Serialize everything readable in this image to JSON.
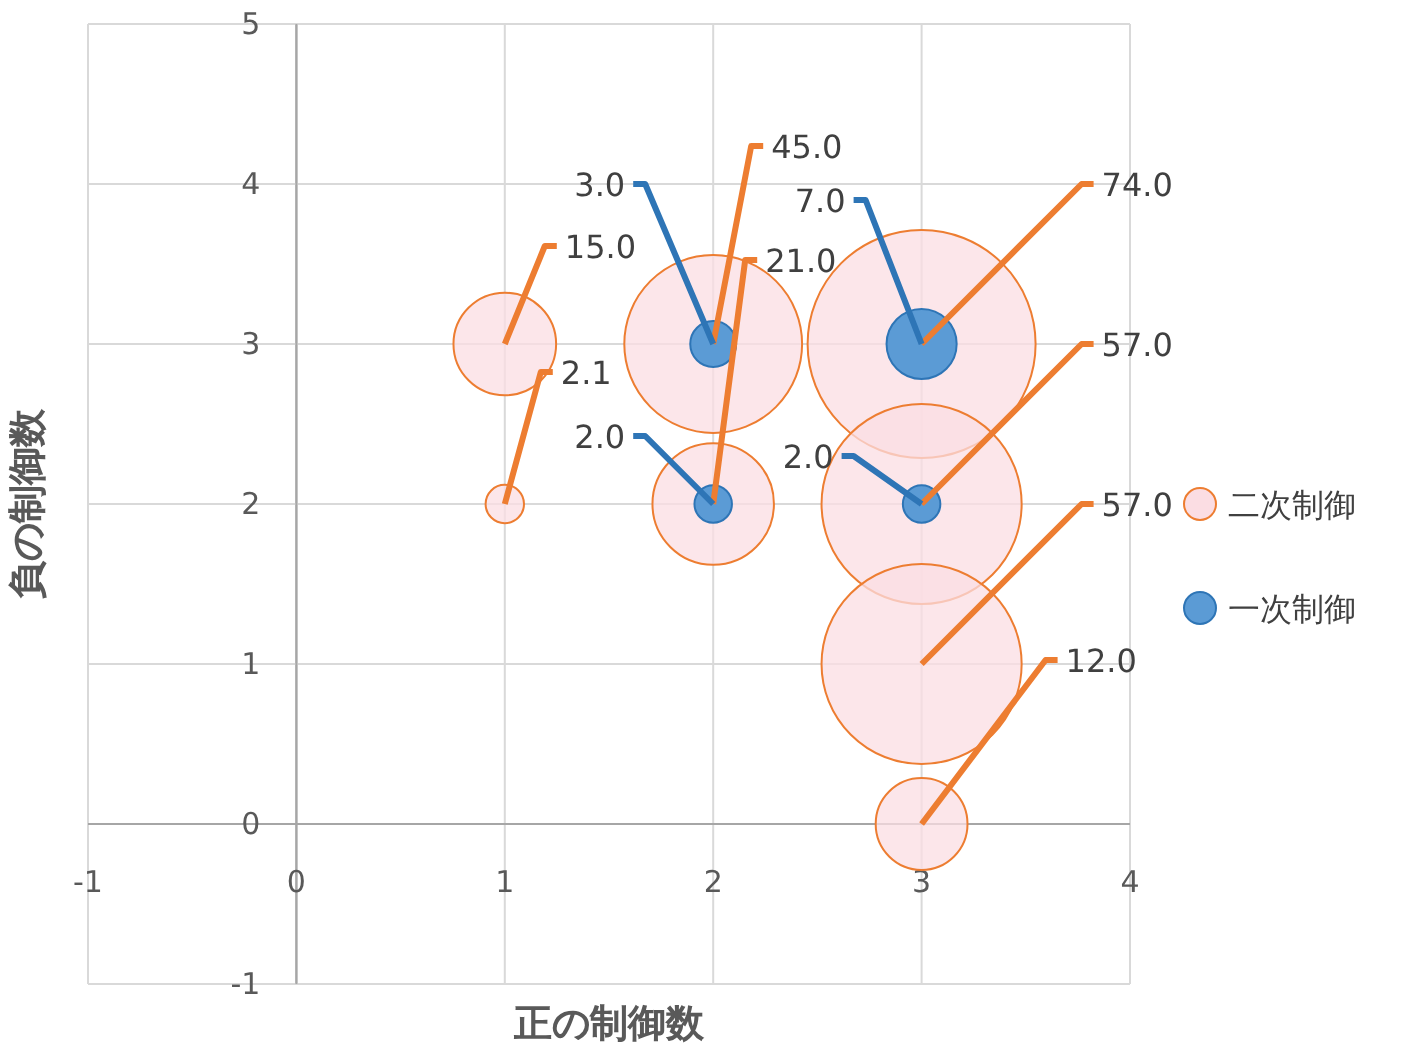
{
  "chart_data": {
    "type": "bubble",
    "xlabel": "正の制御数",
    "ylabel": "負の制御数",
    "xlim": [
      -1,
      4
    ],
    "ylim": [
      -1,
      5
    ],
    "xticks": [
      -1,
      0,
      1,
      2,
      3,
      4
    ],
    "yticks": [
      -1,
      0,
      1,
      2,
      3,
      4,
      5
    ],
    "grid": true,
    "legend": "right",
    "series": [
      {
        "name": "二次制御",
        "color": "#fbdde3",
        "x": [
          1,
          1,
          2,
          2,
          3,
          3,
          3,
          3
        ],
        "values": [
          3,
          2,
          3,
          2,
          3,
          2,
          1,
          0
        ],
        "sizes": [
          15,
          2.1,
          45,
          21,
          74,
          57,
          57,
          12
        ],
        "value_labels": [
          "15.0",
          "2.1",
          "45.0",
          "21.0",
          "74.0",
          "57.0",
          "57.0",
          "12.0"
        ]
      },
      {
        "name": "一次制御",
        "color": "#5b9bd5",
        "x": [
          2,
          2,
          3,
          3
        ],
        "values": [
          3,
          2,
          3,
          2
        ],
        "sizes": [
          3,
          2,
          7,
          2
        ],
        "value_labels": [
          "3.0",
          "2.0",
          "7.0",
          "2.0"
        ]
      }
    ]
  }
}
